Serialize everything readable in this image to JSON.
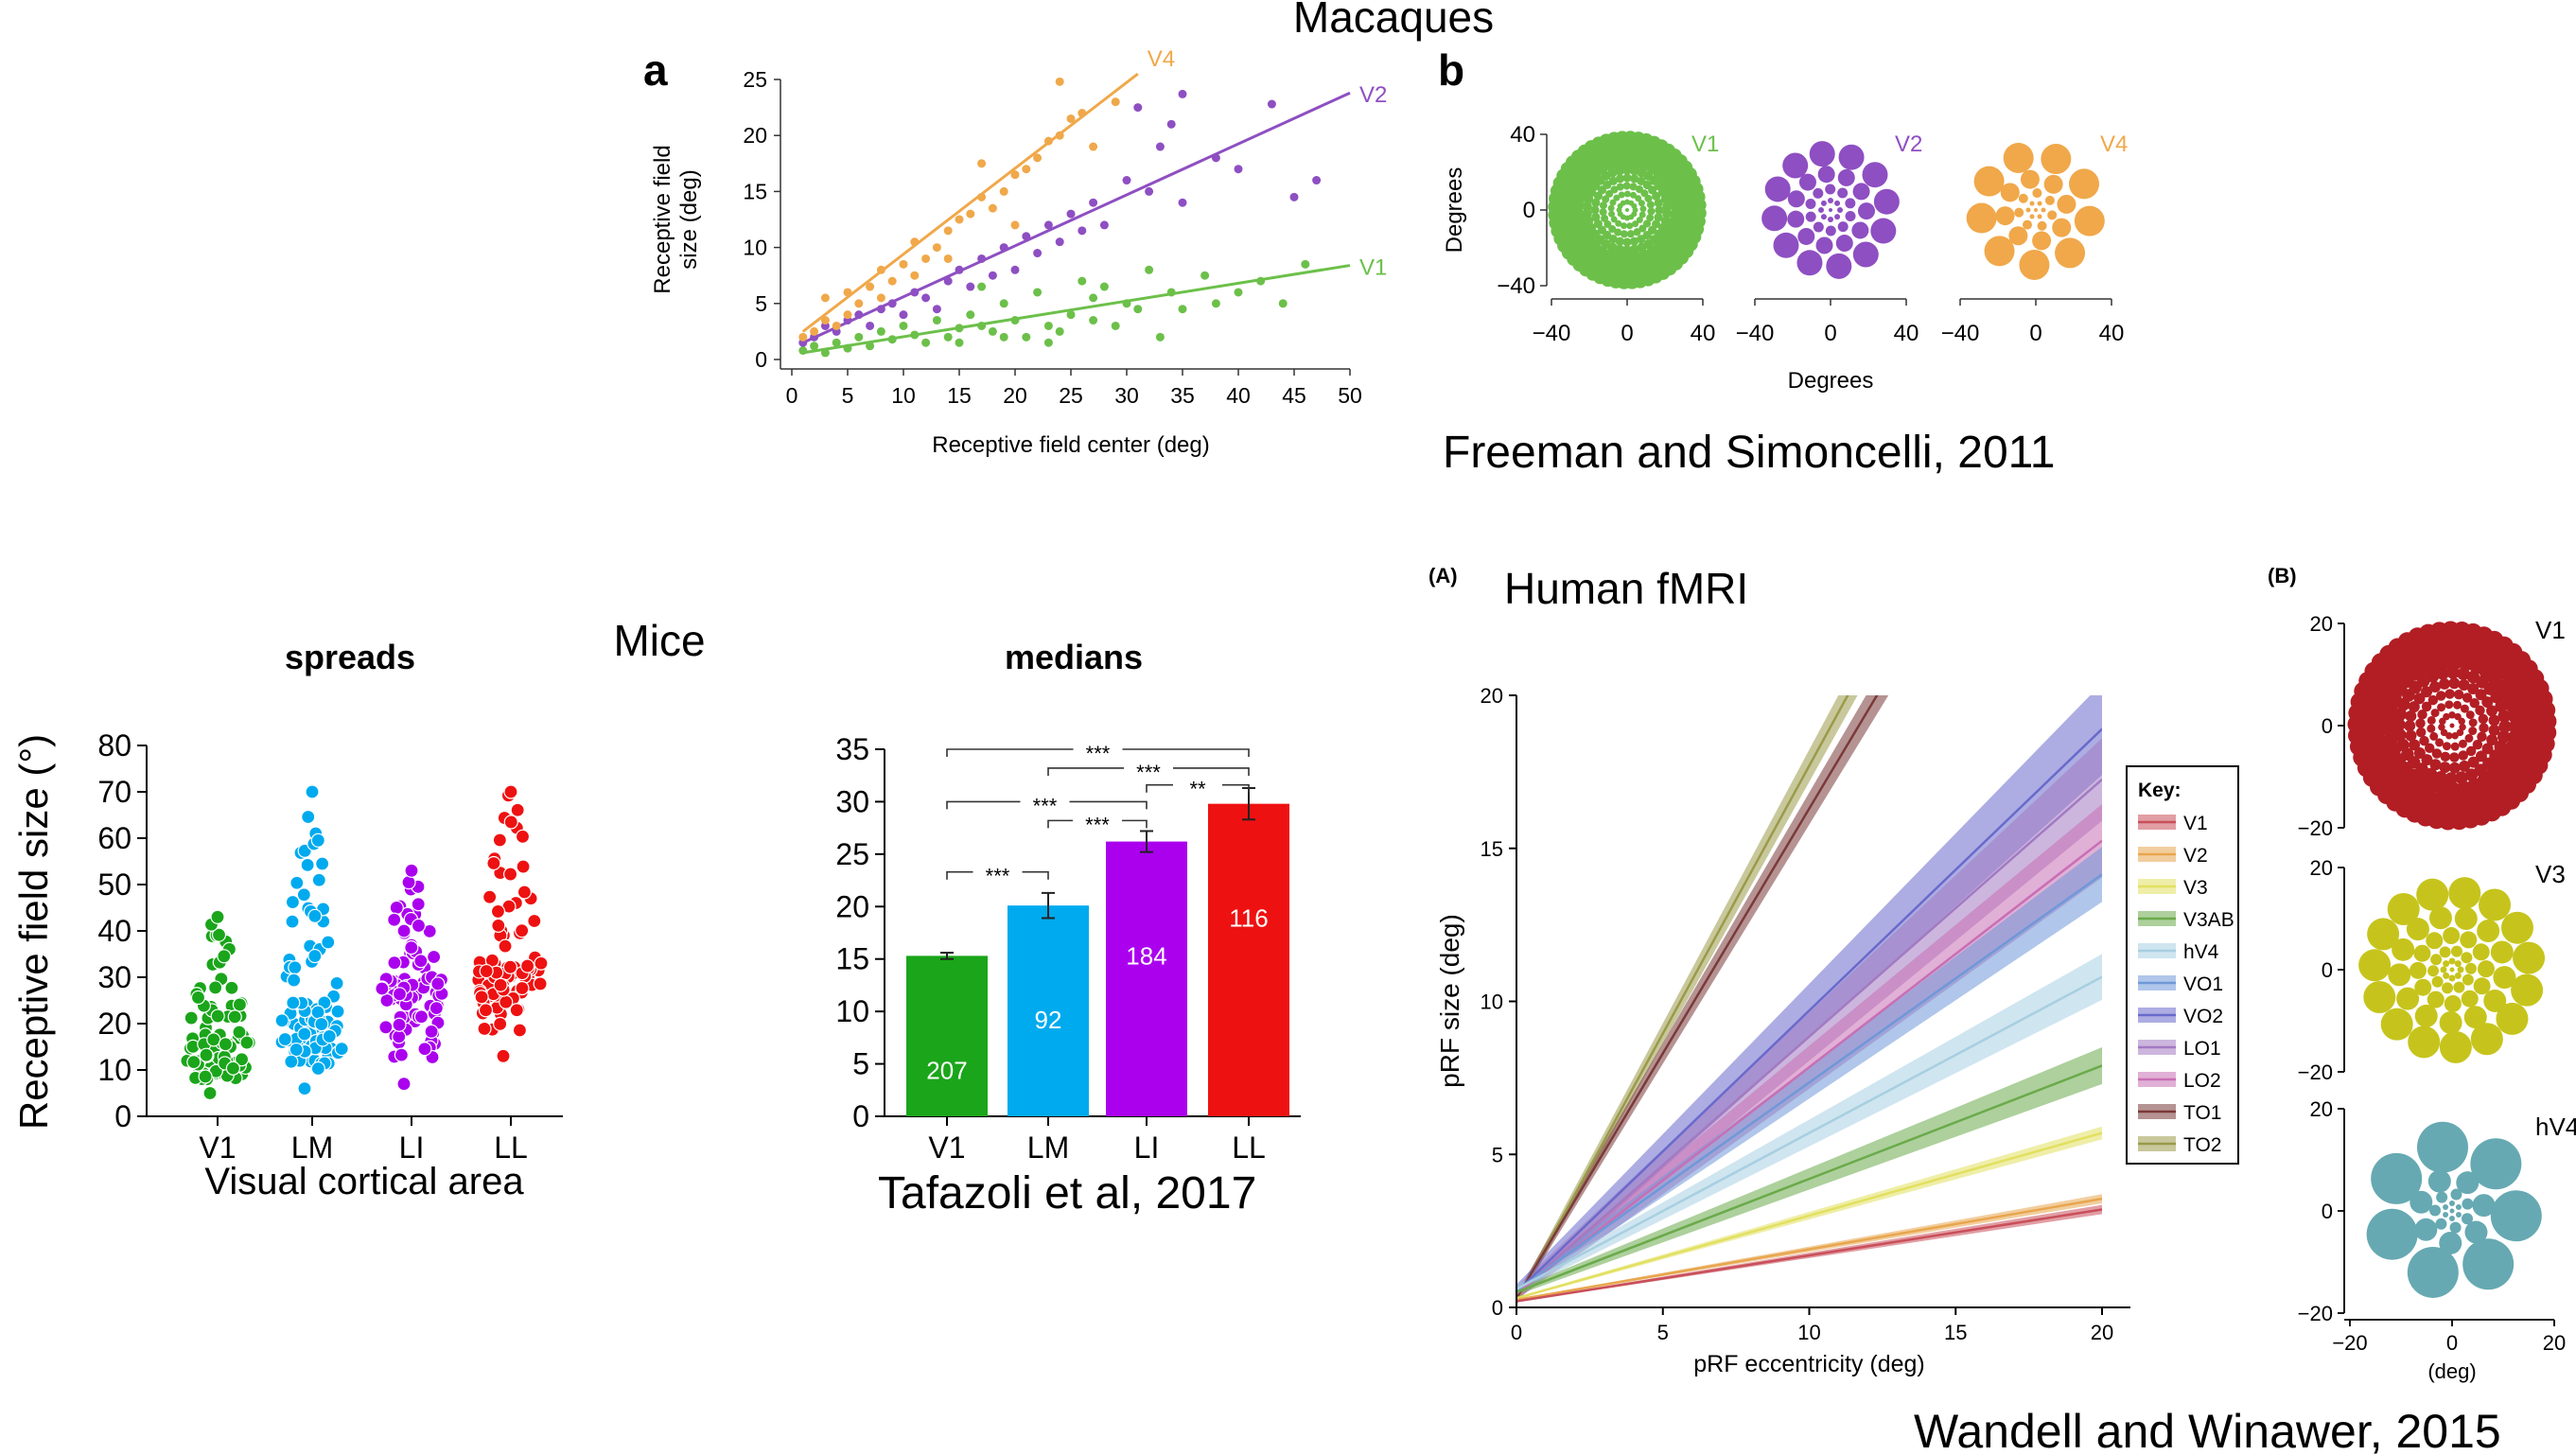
{
  "headings": {
    "macaques": "Macaques",
    "mice": "Mice",
    "human": "Human fMRI",
    "citation_freeman": "Freeman and Simoncelli, 2011",
    "citation_tafazoli": "Tafazoli et al, 2017",
    "citation_wandell": "Wandell and Winawer, 2015",
    "panel_a": "a",
    "panel_b": "b",
    "panel_A": "(A)",
    "panel_B": "(B)"
  },
  "colors": {
    "v1_macaque": "#6cc04a",
    "v2_macaque": "#8e4fc2",
    "v4_macaque": "#f0a84a",
    "mouse_v1": "#1aa51a",
    "mouse_lm": "#00aaee",
    "mouse_li": "#aa00ee",
    "mouse_ll": "#ee1111"
  },
  "chart_data": [
    {
      "id": "macaque_scatter",
      "type": "scatter",
      "xlabel": "Receptive field center (deg)",
      "ylabel": "Receptive field size (deg)",
      "ylabel_lines": [
        "Receptive field",
        "size (deg)"
      ],
      "xlim": [
        0,
        50
      ],
      "ylim": [
        0,
        25
      ],
      "xticks": [
        0,
        5,
        10,
        15,
        20,
        25,
        30,
        35,
        40,
        45,
        50
      ],
      "yticks": [
        0,
        5,
        10,
        15,
        20,
        25
      ],
      "series": [
        {
          "name": "V1",
          "color": "#6cc04a",
          "fit": [
            [
              1,
              0.6
            ],
            [
              50,
              8.4
            ]
          ],
          "points": [
            [
              1,
              0.8
            ],
            [
              2,
              1.2
            ],
            [
              3,
              0.6
            ],
            [
              4,
              1.5
            ],
            [
              5,
              1.0
            ],
            [
              6,
              2.0
            ],
            [
              7,
              1.2
            ],
            [
              8,
              2.5
            ],
            [
              9,
              1.8
            ],
            [
              10,
              3.0
            ],
            [
              11,
              2.2
            ],
            [
              12,
              1.5
            ],
            [
              13,
              3.5
            ],
            [
              14,
              2.0
            ],
            [
              15,
              2.8
            ],
            [
              16,
              4.0
            ],
            [
              17,
              3.0
            ],
            [
              18,
              2.5
            ],
            [
              19,
              5.0
            ],
            [
              20,
              3.5
            ],
            [
              21,
              2.0
            ],
            [
              22,
              6.0
            ],
            [
              23,
              3.0
            ],
            [
              24,
              2.5
            ],
            [
              25,
              4.0
            ],
            [
              26,
              7.0
            ],
            [
              27,
              5.5
            ],
            [
              28,
              6.5
            ],
            [
              29,
              3.0
            ],
            [
              30,
              5.0
            ],
            [
              31,
              4.5
            ],
            [
              32,
              8.0
            ],
            [
              34,
              6.0
            ],
            [
              35,
              4.5
            ],
            [
              37,
              7.5
            ],
            [
              38,
              5.0
            ],
            [
              40,
              6.0
            ],
            [
              42,
              7.0
            ],
            [
              44,
              5.0
            ],
            [
              46,
              8.5
            ],
            [
              19,
              2.0
            ],
            [
              17,
              6.5
            ],
            [
              23,
              1.5
            ],
            [
              27,
              3.5
            ],
            [
              33,
              2.0
            ],
            [
              15,
              1.5
            ]
          ]
        },
        {
          "name": "V2",
          "color": "#8e4fc2",
          "fit": [
            [
              1,
              1.5
            ],
            [
              50,
              23.8
            ]
          ],
          "points": [
            [
              1,
              1.5
            ],
            [
              2,
              2.0
            ],
            [
              3,
              3.0
            ],
            [
              4,
              2.5
            ],
            [
              5,
              3.5
            ],
            [
              6,
              4.0
            ],
            [
              7,
              3.0
            ],
            [
              8,
              4.5
            ],
            [
              9,
              5.0
            ],
            [
              10,
              4.0
            ],
            [
              11,
              6.0
            ],
            [
              12,
              5.5
            ],
            [
              13,
              4.5
            ],
            [
              14,
              7.0
            ],
            [
              15,
              8.0
            ],
            [
              16,
              6.5
            ],
            [
              17,
              9.0
            ],
            [
              18,
              7.5
            ],
            [
              19,
              10.0
            ],
            [
              20,
              8.0
            ],
            [
              21,
              11.0
            ],
            [
              22,
              9.5
            ],
            [
              23,
              12.0
            ],
            [
              24,
              10.5
            ],
            [
              25,
              13.0
            ],
            [
              26,
              11.5
            ],
            [
              27,
              14.0
            ],
            [
              28,
              12.0
            ],
            [
              30,
              16.0
            ],
            [
              32,
              15.0
            ],
            [
              33,
              19.0
            ],
            [
              34,
              21.0
            ],
            [
              35,
              14.0
            ],
            [
              38,
              18.0
            ],
            [
              40,
              17.0
            ],
            [
              43,
              22.8
            ],
            [
              45,
              14.5
            ],
            [
              47,
              16.0
            ],
            [
              31,
              22.5
            ],
            [
              35,
              23.7
            ]
          ]
        },
        {
          "name": "V4",
          "color": "#f0a84a",
          "fit": [
            [
              1,
              2.5
            ],
            [
              31,
              25.5
            ]
          ],
          "points": [
            [
              1,
              2.0
            ],
            [
              2,
              2.5
            ],
            [
              3,
              3.5
            ],
            [
              4,
              3.0
            ],
            [
              5,
              4.0
            ],
            [
              6,
              5.0
            ],
            [
              7,
              6.5
            ],
            [
              8,
              5.5
            ],
            [
              9,
              7.0
            ],
            [
              10,
              8.5
            ],
            [
              11,
              7.5
            ],
            [
              12,
              9.0
            ],
            [
              13,
              10.0
            ],
            [
              14,
              11.5
            ],
            [
              15,
              12.5
            ],
            [
              16,
              13.0
            ],
            [
              17,
              14.5
            ],
            [
              18,
              13.5
            ],
            [
              19,
              15.0
            ],
            [
              20,
              16.5
            ],
            [
              21,
              17.0
            ],
            [
              22,
              18.0
            ],
            [
              23,
              19.5
            ],
            [
              24,
              20.0
            ],
            [
              25,
              21.5
            ],
            [
              26,
              22.0
            ],
            [
              3,
              5.5
            ],
            [
              5,
              6.0
            ],
            [
              8,
              8.0
            ],
            [
              11,
              10.5
            ],
            [
              14,
              9.0
            ],
            [
              17,
              17.5
            ],
            [
              20,
              12.0
            ],
            [
              24,
              24.8
            ],
            [
              27,
              19.0
            ],
            [
              29,
              23.0
            ]
          ]
        }
      ],
      "panel_b": {
        "xlabel": "Degrees",
        "ylabel": "Degrees",
        "xticks": [
          -40,
          0,
          40
        ],
        "yticks": [
          40,
          0,
          -40
        ],
        "mosaics": [
          {
            "name": "V1",
            "color": "#6cc04a"
          },
          {
            "name": "V2",
            "color": "#8e4fc2"
          },
          {
            "name": "V4",
            "color": "#f0a84a"
          }
        ]
      }
    },
    {
      "id": "mouse_spreads",
      "type": "scatter",
      "title": "spreads",
      "xlabel": "Visual cortical area",
      "ylabel": "Receptive field size (°)",
      "categories": [
        "V1",
        "LM",
        "LI",
        "LL"
      ],
      "ylim": [
        0,
        80
      ],
      "yticks": [
        0,
        10,
        20,
        30,
        40,
        50,
        60,
        70,
        80
      ],
      "ranges": [
        {
          "name": "V1",
          "min": 5,
          "max": 43,
          "median": 15,
          "color": "#1aa51a"
        },
        {
          "name": "LM",
          "min": 6,
          "max": 70,
          "median": 20,
          "color": "#00aaee"
        },
        {
          "name": "LI",
          "min": 7,
          "max": 53,
          "median": 26,
          "color": "#aa00ee"
        },
        {
          "name": "LL",
          "min": 13,
          "max": 70,
          "median": 30,
          "color": "#ee1111"
        }
      ]
    },
    {
      "id": "mouse_medians",
      "type": "bar",
      "title": "medians",
      "categories": [
        "V1",
        "LM",
        "LI",
        "LL"
      ],
      "values": [
        15.3,
        20.1,
        26.2,
        29.8
      ],
      "errors": [
        0.3,
        1.2,
        1.0,
        1.5
      ],
      "counts": [
        "207",
        "92",
        "184",
        "116"
      ],
      "ylim": [
        0,
        35
      ],
      "yticks": [
        0,
        5,
        10,
        15,
        20,
        25,
        30,
        35
      ],
      "significance": [
        {
          "from": 0,
          "to": 1,
          "label": "***",
          "y": 23.3
        },
        {
          "from": 0,
          "to": 2,
          "label": "***",
          "y": 30.0
        },
        {
          "from": 1,
          "to": 2,
          "label": "***",
          "y": 28.2
        },
        {
          "from": 0,
          "to": 3,
          "label": "***",
          "y": 35.0
        },
        {
          "from": 1,
          "to": 3,
          "label": "***",
          "y": 33.2
        },
        {
          "from": 2,
          "to": 3,
          "label": "**",
          "y": 31.6
        }
      ]
    },
    {
      "id": "human_prf",
      "type": "line",
      "xlabel": "pRF eccentricity (deg)",
      "ylabel": "pRF size (deg)",
      "xlim": [
        0,
        20
      ],
      "ylim": [
        0,
        20
      ],
      "xticks": [
        0,
        5,
        10,
        15,
        20
      ],
      "yticks": [
        0,
        5,
        10,
        15,
        20
      ],
      "legend_title": "Key:",
      "series": [
        {
          "name": "V1",
          "color": "#c94f5a",
          "intercept": 0.2,
          "slope": 0.15,
          "band": 0.05
        },
        {
          "name": "V2",
          "color": "#e8a64e",
          "intercept": 0.25,
          "slope": 0.165,
          "band": 0.05
        },
        {
          "name": "V3",
          "color": "#e2e060",
          "intercept": 0.3,
          "slope": 0.27,
          "band": 0.07
        },
        {
          "name": "V3AB",
          "color": "#6aaa4a",
          "intercept": 0.5,
          "slope": 0.37,
          "band": 0.2
        },
        {
          "name": "hV4",
          "color": "#a7cfe1",
          "intercept": 0.6,
          "slope": 0.51,
          "band": 0.25
        },
        {
          "name": "VO1",
          "color": "#6f98d8",
          "intercept": 0.55,
          "slope": 0.68,
          "band": 0.3
        },
        {
          "name": "VO2",
          "color": "#6a6acc",
          "intercept": 0.5,
          "slope": 0.92,
          "band": 0.5
        },
        {
          "name": "LO1",
          "color": "#a37ac2",
          "intercept": 0.45,
          "slope": 0.84,
          "band": 0.45
        },
        {
          "name": "LO2",
          "color": "#c86fb4",
          "intercept": 0.45,
          "slope": 0.74,
          "band": 0.4
        },
        {
          "name": "TO1",
          "color": "#7a3a3a",
          "intercept": 0.3,
          "slope": 1.6,
          "band": 0.3
        },
        {
          "name": "TO2",
          "color": "#9a9a4a",
          "intercept": 0.2,
          "slope": 1.75,
          "band": 0.3
        }
      ],
      "panel_B": {
        "xlabel": "(deg)",
        "xticks": [
          -20,
          0,
          20
        ],
        "yticks": [
          20,
          0,
          -20
        ],
        "mosaics": [
          {
            "name": "V1",
            "color": "#b21e24"
          },
          {
            "name": "V3",
            "color": "#c6c41c"
          },
          {
            "name": "hV4",
            "color": "#66a9b2"
          }
        ]
      }
    }
  ]
}
